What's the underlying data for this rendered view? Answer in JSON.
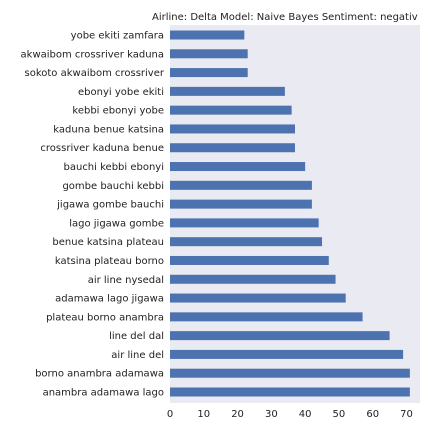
{
  "chart_data": {
    "type": "bar",
    "orientation": "horizontal",
    "title": "Airline: Delta Model: Naive Bayes Sentiment: negativ",
    "xlabel": "",
    "ylabel": "",
    "xlim": [
      0,
      74
    ],
    "x_ticks": [
      0,
      10,
      20,
      30,
      40,
      50,
      60,
      70
    ],
    "grid": false,
    "categories": [
      "yobe ekiti zamfara",
      "akwaibom crossriver kaduna",
      "sokoto akwaibom crossriver",
      "ebonyi yobe ekiti",
      "kebbi ebonyi yobe",
      "kaduna benue katsina",
      "crossriver kaduna benue",
      "bauchi kebbi ebonyi",
      "gombe bauchi kebbi",
      "jigawa gombe bauchi",
      "lago jigawa gombe",
      "benue katsina plateau",
      "katsina plateau borno",
      "air line nysedal",
      "adamawa lago jigawa",
      "plateau borno anambra",
      "line del dal",
      "air line del",
      "borno anambra adamawa",
      "anambra adamawa lago"
    ],
    "values": [
      22,
      23,
      23,
      34,
      36,
      37,
      37,
      40,
      42,
      42,
      44,
      45,
      47,
      49,
      52,
      57,
      65,
      69,
      71,
      71
    ],
    "colors": {
      "bar": "#4c72b0",
      "plot_bg": "#eaeaf2"
    }
  }
}
